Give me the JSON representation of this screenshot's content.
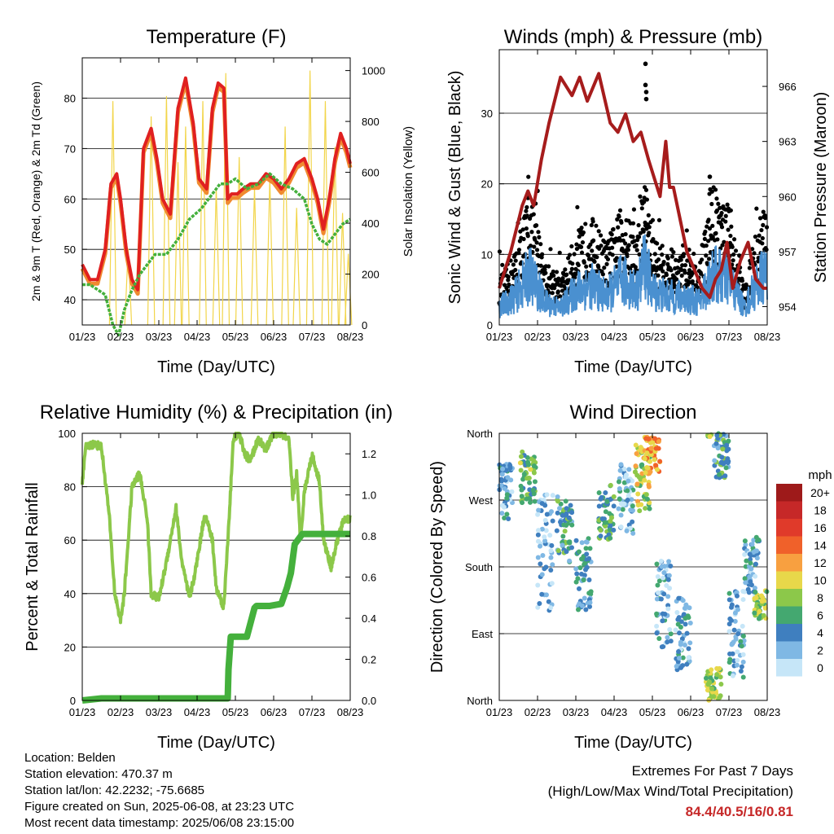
{
  "colors": {
    "temp_2m": "#e02020",
    "temp_9m": "#f08a30",
    "dewpoint": "#44b03c",
    "solar": "#f2d54a",
    "wind": "#4a90d0",
    "gust": "#000000",
    "pressure": "#a61c1c",
    "humidity": "#8cc84a",
    "precip": "#44b03c",
    "extremes_value": "#c62828"
  },
  "chart_data": [
    {
      "id": "temperature",
      "type": "line",
      "title": "Temperature (F)",
      "xlabel": "Time (Day/UTC)",
      "ylabel": "2m & 9m T (Red, Orange) & 2m Td (Green)",
      "y2label": "Solar Insolation (Yellow)",
      "x_ticks": [
        "01/23",
        "02/23",
        "03/23",
        "04/23",
        "05/23",
        "06/23",
        "07/23",
        "08/23"
      ],
      "xlim": [
        0,
        7
      ],
      "ylim": [
        35,
        88
      ],
      "y_ticks": [
        40,
        50,
        60,
        70,
        80
      ],
      "y2lim": [
        0,
        1050
      ],
      "y2_ticks": [
        0,
        200,
        400,
        600,
        800,
        1000
      ],
      "grid": true,
      "series": [
        {
          "key": "temp",
          "axis": "y",
          "style": "line",
          "x": [
            0,
            0.2,
            0.4,
            0.6,
            0.75,
            0.9,
            1.0,
            1.15,
            1.3,
            1.45,
            1.6,
            1.8,
            1.95,
            2.1,
            2.3,
            2.5,
            2.7,
            2.9,
            3.05,
            3.25,
            3.4,
            3.55,
            3.7,
            3.8,
            3.9,
            4.05,
            4.2,
            4.4,
            4.6,
            4.8,
            5.0,
            5.2,
            5.4,
            5.6,
            5.8,
            6.0,
            6.15,
            6.3,
            6.45,
            6.6,
            6.75,
            6.9,
            7.0
          ],
          "values": [
            47,
            44,
            44,
            50,
            63,
            65,
            60,
            50,
            44,
            42,
            70,
            74,
            68,
            60,
            57,
            78,
            84,
            75,
            64,
            62,
            78,
            83,
            82,
            60,
            61,
            61,
            62,
            63,
            63,
            65,
            64,
            62,
            64,
            67,
            68,
            64,
            60,
            54,
            60,
            68,
            73,
            70,
            67
          ]
        },
        {
          "key": "dewpoint",
          "axis": "y",
          "style": "line",
          "x": [
            0,
            0.2,
            0.4,
            0.6,
            0.8,
            0.95,
            1.1,
            1.3,
            1.5,
            1.7,
            1.9,
            2.2,
            2.5,
            2.8,
            3.1,
            3.4,
            3.6,
            3.8,
            4.0,
            4.3,
            4.6,
            4.9,
            5.2,
            5.5,
            5.8,
            6.0,
            6.2,
            6.4,
            6.6,
            6.8,
            7.0
          ],
          "values": [
            43,
            43,
            42,
            41,
            35,
            33,
            38,
            42,
            45,
            47,
            49,
            49,
            52,
            56,
            58,
            61,
            63,
            63,
            64,
            62,
            63,
            65,
            63,
            62,
            60,
            55,
            52,
            51,
            53,
            55,
            56
          ]
        },
        {
          "key": "solar",
          "axis": "y2",
          "style": "spikes",
          "peaks": [
            {
              "x": 0.8,
              "value": 880
            },
            {
              "x": 1.2,
              "value": 300
            },
            {
              "x": 1.8,
              "value": 820
            },
            {
              "x": 2.2,
              "value": 900
            },
            {
              "x": 2.5,
              "value": 640
            },
            {
              "x": 2.7,
              "value": 780
            },
            {
              "x": 3.15,
              "value": 880
            },
            {
              "x": 3.5,
              "value": 540
            },
            {
              "x": 3.75,
              "value": 990
            },
            {
              "x": 4.1,
              "value": 660
            },
            {
              "x": 4.5,
              "value": 540
            },
            {
              "x": 4.9,
              "value": 580
            },
            {
              "x": 5.3,
              "value": 780
            },
            {
              "x": 5.6,
              "value": 460
            },
            {
              "x": 5.95,
              "value": 1000
            },
            {
              "x": 6.35,
              "value": 880
            },
            {
              "x": 6.6,
              "value": 700
            },
            {
              "x": 6.8,
              "value": 440
            },
            {
              "x": 6.95,
              "value": 280
            }
          ]
        }
      ]
    },
    {
      "id": "winds",
      "type": "line",
      "title": "Winds (mph) & Pressure (mb)",
      "xlabel": "Time (Day/UTC)",
      "ylabel": "Sonic Wind & Gust (Blue, Black)",
      "y2label": "Station Pressure (Maroon)",
      "x_ticks": [
        "01/23",
        "02/23",
        "03/23",
        "04/23",
        "05/23",
        "06/23",
        "07/23",
        "08/23"
      ],
      "xlim": [
        0,
        7
      ],
      "ylim": [
        0,
        39
      ],
      "y_ticks": [
        0,
        10,
        20,
        30
      ],
      "y2lim": [
        953,
        968
      ],
      "y2_ticks": [
        954,
        957,
        960,
        963,
        966
      ],
      "grid": true,
      "series": [
        {
          "key": "pressure",
          "axis": "y2",
          "style": "line",
          "x": [
            0,
            0.3,
            0.6,
            0.75,
            0.9,
            1.1,
            1.3,
            1.6,
            1.9,
            2.1,
            2.3,
            2.6,
            2.9,
            3.1,
            3.3,
            3.5,
            3.7,
            3.9,
            4.05,
            4.2,
            4.35,
            4.45,
            4.55,
            4.7,
            4.9,
            5.1,
            5.3,
            5.5,
            5.65,
            5.8,
            5.95,
            6.1,
            6.3,
            6.5,
            6.7,
            6.9,
            7.0
          ],
          "values": [
            955,
            957,
            959.5,
            960.3,
            959.5,
            962,
            964,
            966.5,
            965.5,
            966.5,
            965.2,
            966.7,
            964,
            963.5,
            964.5,
            963,
            963.5,
            962,
            961,
            960,
            963,
            960.5,
            960.5,
            959,
            957,
            956,
            955,
            954.5,
            955.5,
            956,
            957.5,
            955,
            956.5,
            957.5,
            955.5,
            955,
            955
          ]
        },
        {
          "key": "gust",
          "axis": "y",
          "style": "band",
          "x": [
            0,
            0.4,
            0.8,
            1.2,
            1.6,
            2.0,
            2.4,
            2.8,
            3.2,
            3.6,
            3.8,
            4.0,
            4.4,
            4.8,
            5.2,
            5.6,
            6.0,
            6.4,
            6.8,
            7.0
          ],
          "values": [
            5,
            8,
            15,
            7,
            5,
            10,
            12,
            9,
            13,
            10,
            17,
            10,
            8,
            8,
            6,
            16,
            13,
            4,
            12,
            15
          ]
        },
        {
          "key": "wind",
          "axis": "y",
          "style": "band",
          "x": [
            0,
            0.4,
            0.8,
            1.2,
            1.6,
            2.0,
            2.4,
            2.8,
            3.2,
            3.6,
            3.8,
            4.0,
            4.4,
            4.8,
            5.2,
            5.6,
            6.0,
            6.4,
            6.8,
            7.0
          ],
          "values": [
            3,
            5,
            9,
            4,
            3,
            6,
            7,
            5,
            8,
            6,
            11,
            6,
            5,
            5,
            4,
            9,
            8,
            3,
            8,
            9
          ]
        },
        {
          "key": "gust_outliers",
          "axis": "y",
          "style": "points",
          "x": [
            3.82,
            3.82,
            3.84,
            3.84,
            5.5,
            1.0,
            0.75
          ],
          "values": [
            37,
            34,
            33,
            32,
            21,
            19,
            18
          ]
        }
      ]
    },
    {
      "id": "humidity",
      "type": "line",
      "title": "Relative Humidity (%) & Precipitation (in)",
      "xlabel": "Time (Day/UTC)",
      "ylabel": "Percent & Total Rainfall",
      "x_ticks": [
        "01/23",
        "02/23",
        "03/23",
        "04/23",
        "05/23",
        "06/23",
        "07/23",
        "08/23"
      ],
      "xlim": [
        0,
        7
      ],
      "ylim": [
        0,
        100
      ],
      "y_ticks": [
        0,
        20,
        40,
        60,
        80,
        100
      ],
      "y2lim": [
        0,
        1.3
      ],
      "y2_ticks": [
        "0.0",
        "0.2",
        "0.4",
        "0.6",
        "0.8",
        "1.0",
        "1.2"
      ],
      "grid": true,
      "series": [
        {
          "key": "rh",
          "axis": "y",
          "style": "line",
          "x": [
            0,
            0.1,
            0.3,
            0.5,
            0.7,
            0.85,
            1.0,
            1.1,
            1.3,
            1.5,
            1.7,
            1.8,
            2.0,
            2.2,
            2.45,
            2.6,
            2.8,
            2.95,
            3.2,
            3.4,
            3.5,
            3.7,
            3.85,
            3.95,
            4.1,
            4.25,
            4.4,
            4.6,
            4.8,
            5.0,
            5.2,
            5.4,
            5.5,
            5.6,
            5.7,
            5.8,
            6.0,
            6.2,
            6.3,
            6.5,
            6.7,
            6.85,
            7.0
          ],
          "values": [
            82,
            95,
            96,
            95,
            70,
            40,
            30,
            40,
            80,
            85,
            68,
            40,
            38,
            52,
            72,
            52,
            38,
            48,
            70,
            60,
            42,
            35,
            72,
            98,
            100,
            92,
            90,
            98,
            94,
            100,
            100,
            97,
            76,
            85,
            60,
            78,
            92,
            82,
            60,
            50,
            62,
            68,
            68
          ]
        },
        {
          "key": "precip",
          "axis": "y2",
          "style": "line",
          "x": [
            0,
            0.5,
            1.0,
            2.0,
            3.0,
            3.8,
            3.82,
            3.88,
            4.05,
            4.3,
            4.5,
            4.55,
            4.9,
            5.2,
            5.35,
            5.45,
            5.55,
            5.75,
            6.0,
            6.5,
            7.0
          ],
          "values": [
            0,
            0.01,
            0.01,
            0.01,
            0.01,
            0.01,
            0.15,
            0.31,
            0.31,
            0.31,
            0.45,
            0.46,
            0.46,
            0.47,
            0.55,
            0.62,
            0.76,
            0.81,
            0.81,
            0.81,
            0.81
          ]
        }
      ]
    },
    {
      "id": "wind_direction",
      "type": "scatter",
      "title": "Wind Direction",
      "xlabel": "Time (Day/UTC)",
      "ylabel": "Direction (Colored By Speed)",
      "x_ticks": [
        "01/23",
        "02/23",
        "03/23",
        "04/23",
        "05/23",
        "06/23",
        "07/23",
        "08/23"
      ],
      "xlim": [
        0,
        7
      ],
      "ylim": [
        0,
        360
      ],
      "y_ticks": [
        {
          "value": 0,
          "label": "North"
        },
        {
          "value": 90,
          "label": "East"
        },
        {
          "value": 180,
          "label": "South"
        },
        {
          "value": 270,
          "label": "West"
        },
        {
          "value": 360,
          "label": "North"
        }
      ],
      "grid": true,
      "legend": {
        "title": "mph",
        "labels": [
          "20+",
          "18",
          "16",
          "14",
          "12",
          "10",
          "8",
          "6",
          "4",
          "2",
          "0"
        ],
        "colors": [
          "#9e1a1a",
          "#c62828",
          "#e03a2a",
          "#f0612a",
          "#f8a040",
          "#e8d84a",
          "#8cc84a",
          "#44a870",
          "#3f7fbf",
          "#7fb8e4",
          "#c6e6f8"
        ],
        "placement": "right"
      },
      "clusters": [
        {
          "x": 0.15,
          "dir": 280,
          "spread": 40,
          "speed": 3
        },
        {
          "x": 0.75,
          "dir": 300,
          "spread": 35,
          "speed": 7
        },
        {
          "x": 1.2,
          "dir": 200,
          "spread": 80,
          "speed": 2
        },
        {
          "x": 1.7,
          "dir": 230,
          "spread": 45,
          "speed": 5
        },
        {
          "x": 2.2,
          "dir": 170,
          "spread": 50,
          "speed": 4
        },
        {
          "x": 2.8,
          "dir": 250,
          "spread": 40,
          "speed": 6
        },
        {
          "x": 3.3,
          "dir": 270,
          "spread": 50,
          "speed": 3
        },
        {
          "x": 3.75,
          "dir": 300,
          "spread": 45,
          "speed": 9
        },
        {
          "x": 4.3,
          "dir": 130,
          "spread": 60,
          "speed": 3
        },
        {
          "x": 4.8,
          "dir": 90,
          "spread": 50,
          "speed": 3
        },
        {
          "x": 5.6,
          "dir": 20,
          "spread": 25,
          "speed": 8
        },
        {
          "x": 5.8,
          "dir": 330,
          "spread": 30,
          "speed": 5
        },
        {
          "x": 6.2,
          "dir": 90,
          "spread": 60,
          "speed": 3
        },
        {
          "x": 6.6,
          "dir": 180,
          "spread": 40,
          "speed": 3
        },
        {
          "x": 6.85,
          "dir": 130,
          "spread": 20,
          "speed": 8
        },
        {
          "x": 4.0,
          "dir": 330,
          "spread": 25,
          "speed": 12
        }
      ]
    }
  ],
  "footer": {
    "location": "Location: Belden",
    "elevation": "Station elevation: 470.37 m",
    "latlon": "Station lat/lon: 42.2232; -75.6685",
    "created": "Figure created on Sun, 2025-06-08, at 23:23 UTC",
    "timestamp": "Most recent data timestamp: 2025/06/08 23:15:00",
    "extremes_title": "Extremes For Past 7 Days",
    "extremes_subtitle": "(High/Low/Max Wind/Total Precipitation)",
    "extremes_values": "84.4/40.5/16/0.81"
  }
}
